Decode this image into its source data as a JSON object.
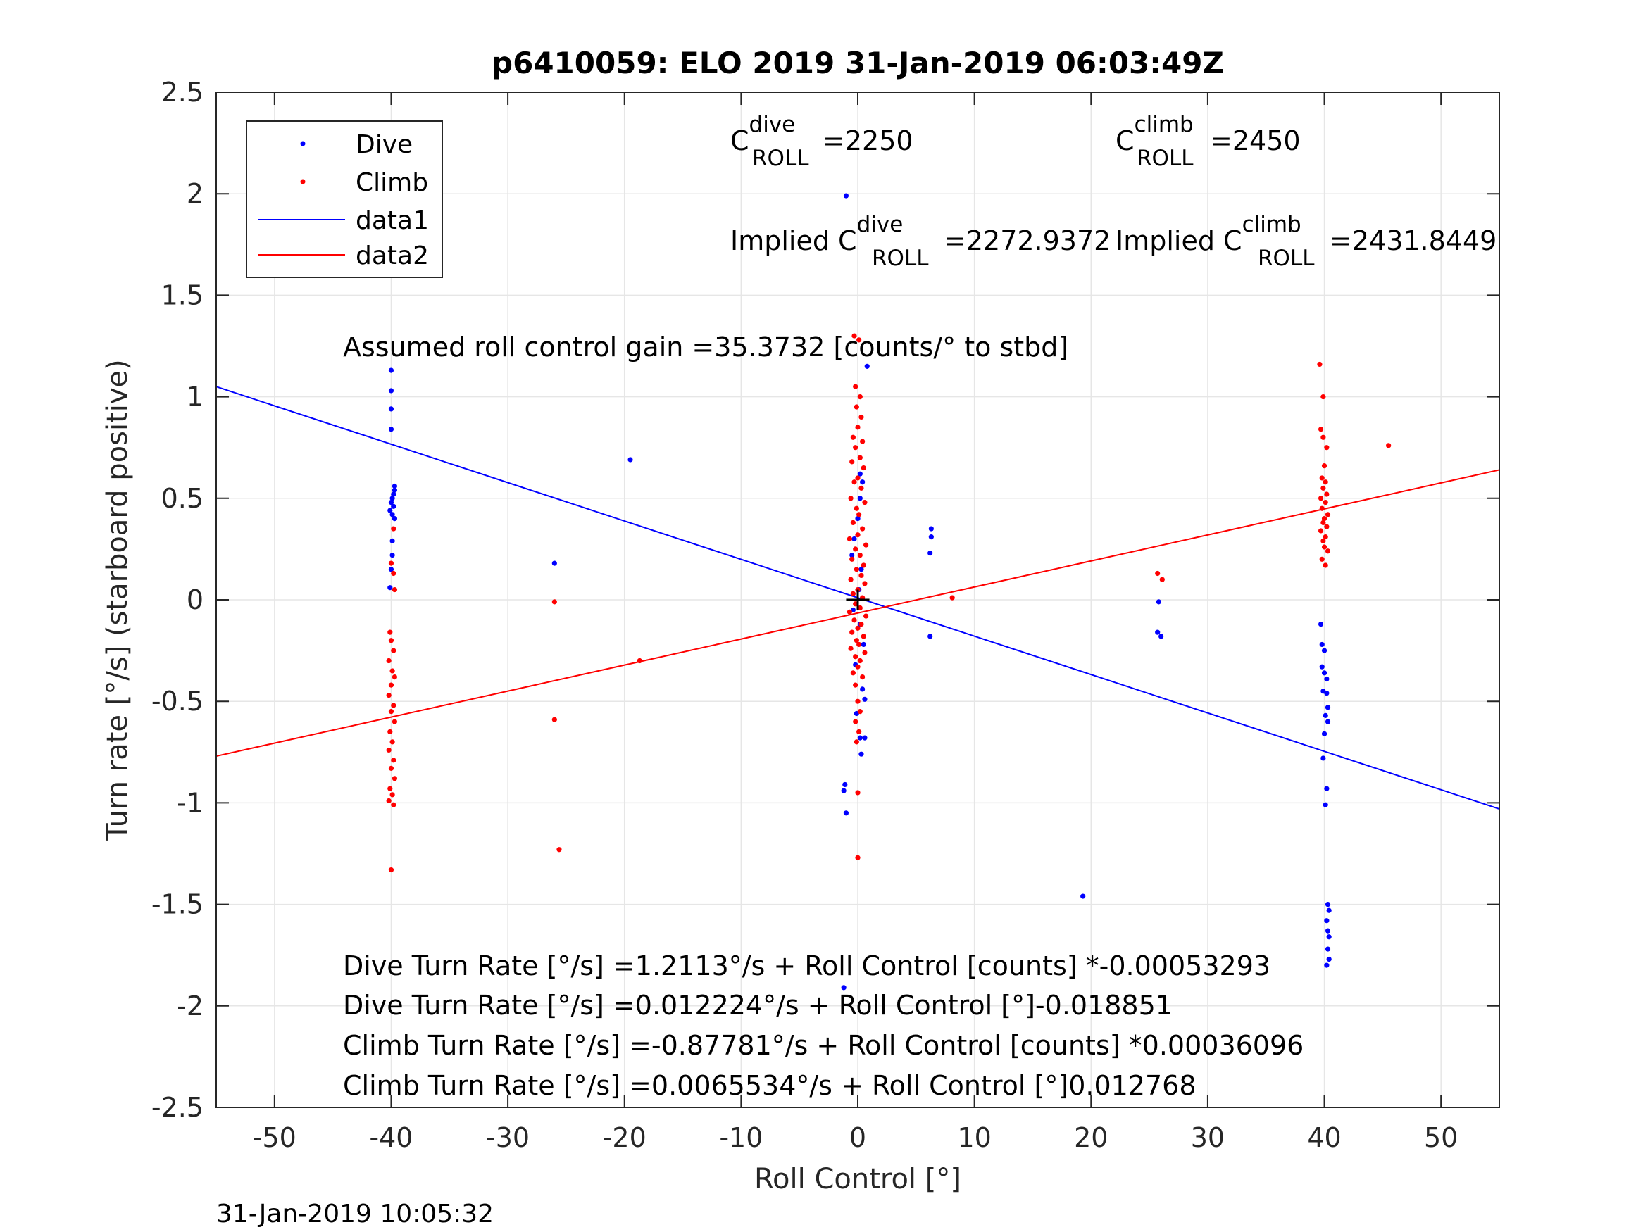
{
  "chart_data": {
    "type": "scatter",
    "title": "p6410059: ELO 2019 31-Jan-2019 06:03:49Z",
    "xlabel": "Roll Control [°]",
    "ylabel": "Turn rate [°/s] (starboard positive)",
    "xlim": [
      -55,
      55
    ],
    "ylim": [
      -2.5,
      2.5
    ],
    "xticks": [
      -50,
      -40,
      -30,
      -20,
      -10,
      0,
      10,
      20,
      30,
      40,
      50
    ],
    "yticks": [
      2.5,
      2,
      1.5,
      1,
      0.5,
      0,
      -0.5,
      -1,
      -1.5,
      -2,
      -2.5
    ],
    "xtick_labels": [
      "-50",
      "-40",
      "-30",
      "-20",
      "-10",
      "0",
      "10",
      "20",
      "30",
      "40",
      "50"
    ],
    "ytick_labels": [
      "2.5",
      "2",
      "1.5",
      "1",
      "0.5",
      "0",
      "-0.5",
      "-1",
      "-1.5",
      "-2",
      "-2.5"
    ],
    "grid": true,
    "legend_position": "top-left",
    "timestamp": "31-Jan-2019 10:05:32",
    "series": [
      {
        "name": "Dive",
        "kind": "points",
        "color": "#0000ff",
        "points": [
          [
            -40,
            1.13
          ],
          [
            -40,
            1.03
          ],
          [
            -40,
            0.94
          ],
          [
            -40,
            0.84
          ],
          [
            -39.7,
            0.56
          ],
          [
            -39.7,
            0.54
          ],
          [
            -39.8,
            0.52
          ],
          [
            -39.9,
            0.5
          ],
          [
            -40,
            0.48
          ],
          [
            -39.8,
            0.46
          ],
          [
            -40.1,
            0.44
          ],
          [
            -39.9,
            0.42
          ],
          [
            -39.7,
            0.4
          ],
          [
            -39.9,
            0.29
          ],
          [
            -39.9,
            0.22
          ],
          [
            -40,
            0.15
          ],
          [
            -40.1,
            0.06
          ],
          [
            -26,
            0.18
          ],
          [
            -19.5,
            0.69
          ],
          [
            -1,
            1.99
          ],
          [
            -1.1,
            -0.91
          ],
          [
            -1.2,
            -0.94
          ],
          [
            -1,
            -1.05
          ],
          [
            -1.2,
            -1.91
          ],
          [
            0.2,
            0.62
          ],
          [
            0.4,
            0.58
          ],
          [
            0.2,
            0.5
          ],
          [
            0,
            0.4
          ],
          [
            -0.3,
            0.3
          ],
          [
            -0.5,
            0.22
          ],
          [
            0.3,
            0.15
          ],
          [
            0.1,
            0.05
          ],
          [
            -0.4,
            -0.05
          ],
          [
            0.2,
            -0.12
          ],
          [
            0.5,
            -0.22
          ],
          [
            -0.2,
            -0.32
          ],
          [
            0.4,
            -0.44
          ],
          [
            -0.1,
            -0.56
          ],
          [
            0.6,
            -0.49
          ],
          [
            0.2,
            -0.68
          ],
          [
            0.6,
            -0.68
          ],
          [
            0.3,
            -0.76
          ],
          [
            0.8,
            1.15
          ],
          [
            6.3,
            0.35
          ],
          [
            6.3,
            0.31
          ],
          [
            6.2,
            0.23
          ],
          [
            6.2,
            -0.18
          ],
          [
            19.3,
            -1.46
          ],
          [
            25.7,
            -0.16
          ],
          [
            26,
            -0.18
          ],
          [
            25.8,
            -0.01
          ],
          [
            39.7,
            -0.12
          ],
          [
            39.8,
            -0.22
          ],
          [
            40,
            -0.25
          ],
          [
            39.8,
            -0.33
          ],
          [
            40,
            -0.36
          ],
          [
            40.2,
            -0.39
          ],
          [
            39.9,
            -0.45
          ],
          [
            40.2,
            -0.46
          ],
          [
            40.3,
            -0.53
          ],
          [
            40.1,
            -0.57
          ],
          [
            40.3,
            -0.6
          ],
          [
            40,
            -0.66
          ],
          [
            39.9,
            -0.78
          ],
          [
            40.2,
            -0.93
          ],
          [
            40.1,
            -1.01
          ],
          [
            40.3,
            -1.5
          ],
          [
            40.4,
            -1.53
          ],
          [
            40.2,
            -1.58
          ],
          [
            40.3,
            -1.63
          ],
          [
            40.4,
            -1.66
          ],
          [
            40.3,
            -1.72
          ],
          [
            40.4,
            -1.77
          ],
          [
            40.2,
            -1.8
          ]
        ]
      },
      {
        "name": "Climb",
        "kind": "points",
        "color": "#ff0000",
        "points": [
          [
            -39.8,
            0.35
          ],
          [
            -40,
            0.18
          ],
          [
            -39.8,
            0.13
          ],
          [
            -39.7,
            0.05
          ],
          [
            -40.1,
            -0.16
          ],
          [
            -40,
            -0.2
          ],
          [
            -39.8,
            -0.25
          ],
          [
            -40.2,
            -0.3
          ],
          [
            -39.9,
            -0.35
          ],
          [
            -39.7,
            -0.38
          ],
          [
            -40,
            -0.42
          ],
          [
            -40.2,
            -0.47
          ],
          [
            -39.8,
            -0.52
          ],
          [
            -40,
            -0.55
          ],
          [
            -39.7,
            -0.6
          ],
          [
            -40.1,
            -0.65
          ],
          [
            -39.9,
            -0.7
          ],
          [
            -40.2,
            -0.74
          ],
          [
            -39.8,
            -0.79
          ],
          [
            -40,
            -0.83
          ],
          [
            -39.7,
            -0.88
          ],
          [
            -40.1,
            -0.93
          ],
          [
            -39.9,
            -0.96
          ],
          [
            -40.2,
            -0.99
          ],
          [
            -39.8,
            -1.01
          ],
          [
            -40,
            -1.33
          ],
          [
            -26,
            -0.01
          ],
          [
            -26,
            -0.59
          ],
          [
            -25.6,
            -1.23
          ],
          [
            -18.7,
            -0.3
          ],
          [
            -0.3,
            1.3
          ],
          [
            0.1,
            1.28
          ],
          [
            -0.2,
            1.05
          ],
          [
            0.2,
            1.0
          ],
          [
            -0.1,
            0.95
          ],
          [
            0.3,
            0.9
          ],
          [
            0,
            0.85
          ],
          [
            -0.4,
            0.8
          ],
          [
            0.4,
            0.78
          ],
          [
            -0.2,
            0.75
          ],
          [
            0.2,
            0.7
          ],
          [
            -0.5,
            0.68
          ],
          [
            0.5,
            0.65
          ],
          [
            0,
            0.6
          ],
          [
            -0.3,
            0.58
          ],
          [
            0.3,
            0.55
          ],
          [
            -0.6,
            0.5
          ],
          [
            0.6,
            0.48
          ],
          [
            -0.1,
            0.45
          ],
          [
            0.1,
            0.42
          ],
          [
            -0.4,
            0.38
          ],
          [
            0.4,
            0.35
          ],
          [
            0,
            0.32
          ],
          [
            -0.7,
            0.3
          ],
          [
            0.7,
            0.27
          ],
          [
            -0.2,
            0.25
          ],
          [
            0.2,
            0.22
          ],
          [
            -0.5,
            0.2
          ],
          [
            0.5,
            0.17
          ],
          [
            -0.1,
            0.15
          ],
          [
            0.3,
            0.12
          ],
          [
            -0.6,
            0.1
          ],
          [
            0.6,
            0.08
          ],
          [
            0,
            0.05
          ],
          [
            -0.4,
            0.03
          ],
          [
            0.4,
            0.01
          ],
          [
            -0.2,
            -0.02
          ],
          [
            0.2,
            -0.04
          ],
          [
            -0.7,
            -0.06
          ],
          [
            0.7,
            -0.08
          ],
          [
            -0.3,
            -0.1
          ],
          [
            0.3,
            -0.12
          ],
          [
            0,
            -0.14
          ],
          [
            -0.5,
            -0.16
          ],
          [
            0.5,
            -0.18
          ],
          [
            -0.1,
            -0.2
          ],
          [
            0.1,
            -0.22
          ],
          [
            -0.6,
            -0.24
          ],
          [
            0.6,
            -0.26
          ],
          [
            -0.2,
            -0.28
          ],
          [
            0.2,
            -0.3
          ],
          [
            0,
            -0.33
          ],
          [
            -0.4,
            -0.36
          ],
          [
            0.4,
            -0.38
          ],
          [
            -0.2,
            -0.42
          ],
          [
            0,
            -0.5
          ],
          [
            0.2,
            -0.55
          ],
          [
            -0.2,
            -0.6
          ],
          [
            0.1,
            -0.65
          ],
          [
            -0.1,
            -0.7
          ],
          [
            0,
            -0.95
          ],
          [
            0,
            -1.27
          ],
          [
            8.1,
            0.01
          ],
          [
            25.7,
            0.13
          ],
          [
            26.1,
            0.1
          ],
          [
            45.5,
            0.76
          ],
          [
            39.6,
            1.16
          ],
          [
            39.9,
            1.0
          ],
          [
            39.7,
            0.84
          ],
          [
            39.9,
            0.8
          ],
          [
            40.2,
            0.75
          ],
          [
            40,
            0.66
          ],
          [
            39.8,
            0.6
          ],
          [
            40.1,
            0.58
          ],
          [
            39.9,
            0.55
          ],
          [
            40.2,
            0.52
          ],
          [
            39.7,
            0.5
          ],
          [
            40.1,
            0.48
          ],
          [
            39.8,
            0.45
          ],
          [
            40.3,
            0.42
          ],
          [
            40,
            0.4
          ],
          [
            39.9,
            0.38
          ],
          [
            40.2,
            0.36
          ],
          [
            39.7,
            0.34
          ],
          [
            40.1,
            0.31
          ],
          [
            39.9,
            0.29
          ],
          [
            40,
            0.26
          ],
          [
            40.3,
            0.24
          ],
          [
            39.8,
            0.2
          ],
          [
            40.1,
            0.17
          ]
        ]
      },
      {
        "name": "data1",
        "kind": "line",
        "color": "#0000ff",
        "x": [
          -55,
          55
        ],
        "y": [
          1.05,
          -1.03
        ]
      },
      {
        "name": "data2",
        "kind": "line",
        "color": "#ff0000",
        "x": [
          -55,
          55
        ],
        "y": [
          -0.77,
          0.64
        ]
      }
    ],
    "marker": {
      "x": [
        -1,
        1,
        0,
        0
      ],
      "y": [
        0,
        0,
        -0.05,
        0.05
      ],
      "color": "#000000"
    },
    "annotations": {
      "c_dive_base": "C",
      "c_dive_sup": "dive",
      "c_dive_sub": "ROLL",
      "c_dive_value": "=2250",
      "c_climb_base": "C",
      "c_climb_sup": "climb",
      "c_climb_sub": "ROLL",
      "c_climb_value": "=2450",
      "implied_dive_prefix": "Implied C",
      "implied_dive_sup": "dive",
      "implied_dive_sub": "ROLL",
      "implied_dive_value": "=2272.9372",
      "implied_climb_prefix": "Implied C",
      "implied_climb_sup": "climb",
      "implied_climb_sub": "ROLL",
      "implied_climb_value": "=2431.8449",
      "gain": "Assumed roll control gain =35.3732 [counts/° to stbd]",
      "eq1": "Dive Turn Rate [°/s] =1.2113°/s + Roll Control [counts] *-0.00053293",
      "eq2": "Dive Turn Rate [°/s] =0.012224°/s + Roll Control [°]-0.018851",
      "eq3": "Climb Turn Rate [°/s] =-0.87781°/s + Roll Control [counts] *0.00036096",
      "eq4": "Climb Turn Rate [°/s] =0.0065534°/s + Roll Control [°]0.012768"
    }
  }
}
